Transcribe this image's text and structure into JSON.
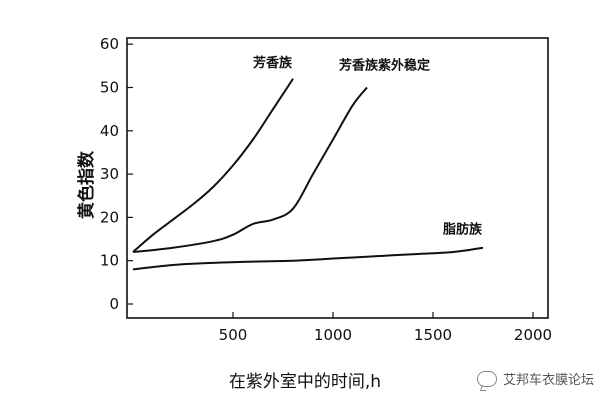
{
  "chart_data": {
    "type": "line",
    "xlabel": "在紫外室中的时间,h",
    "ylabel": "黄色指数",
    "xlim": [
      0,
      2000
    ],
    "ylim": [
      0,
      60
    ],
    "x_ticks": [
      "500",
      "1000",
      "1500",
      "2000"
    ],
    "y_ticks": [
      "0",
      "10",
      "20",
      "30",
      "40",
      "50",
      "60"
    ],
    "grid": false,
    "series": [
      {
        "name": "芳香族",
        "x": [
          0,
          100,
          200,
          300,
          400,
          500,
          600,
          700,
          800
        ],
        "y": [
          12,
          16,
          19.5,
          23,
          27,
          32,
          38,
          45,
          52
        ]
      },
      {
        "name": "芳香族紫外稳定",
        "x": [
          0,
          200,
          400,
          500,
          600,
          700,
          800,
          900,
          1000,
          1100,
          1170
        ],
        "y": [
          12,
          13,
          14.5,
          16,
          18.5,
          19.5,
          22,
          30,
          38,
          46,
          50
        ]
      },
      {
        "name": "脂肪族",
        "x": [
          0,
          200,
          400,
          600,
          800,
          1000,
          1200,
          1400,
          1600,
          1750
        ],
        "y": [
          8,
          9,
          9.5,
          9.8,
          10,
          10.5,
          11,
          11.5,
          12,
          13
        ]
      }
    ]
  },
  "watermark": "艾邦车衣膜论坛"
}
